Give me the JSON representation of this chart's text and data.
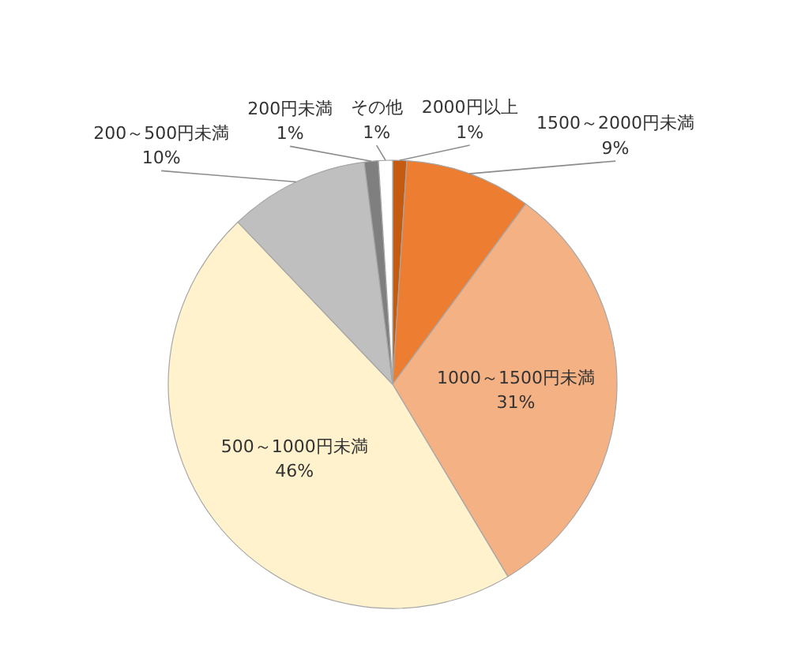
{
  "chart_data": {
    "type": "pie",
    "categories": [
      "2000円以上",
      "1500～2000円未満",
      "1000～1500円未満",
      "500～1000円未満",
      "200～500円未満",
      "200円未満",
      "その他"
    ],
    "values": [
      1,
      9,
      31,
      46,
      10,
      1,
      1
    ],
    "value_labels": [
      "1%",
      "9%",
      "31%",
      "46%",
      "10%",
      "1%",
      "1%"
    ],
    "colors": [
      "#c55a11",
      "#ed7d31",
      "#f4b183",
      "#fff2cc",
      "#bfbfbf",
      "#7f7f7f",
      "#ffffff"
    ]
  }
}
